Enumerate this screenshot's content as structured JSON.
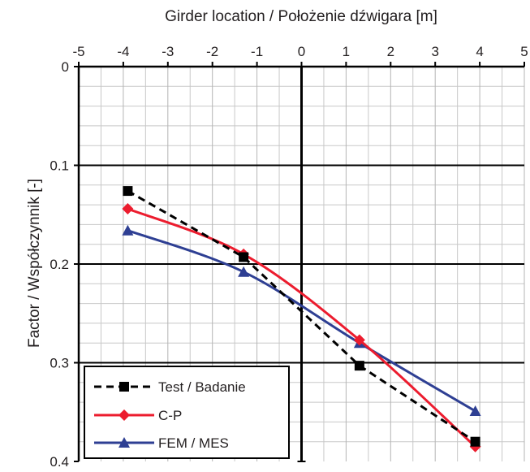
{
  "chart_data": {
    "type": "line",
    "xlabel": "Girder location / Położenie dźwigara [m]",
    "ylabel": "Factor / Współczynnik [-]",
    "xlim": [
      -5,
      5
    ],
    "ylim": [
      0,
      0.4
    ],
    "y_inverted": true,
    "x_axis_position": "top",
    "x_ticks": [
      "-5",
      "-4",
      "-3",
      "-2",
      "-1",
      "0",
      "1",
      "2",
      "3",
      "4",
      "5"
    ],
    "y_ticks": [
      "0",
      "0.1",
      "0.2",
      "0.3",
      "0.4"
    ],
    "grid": true,
    "legend_position": "bottom-left",
    "series": [
      {
        "name": "Test / Badanie",
        "x": [
          -3.9,
          -1.3,
          1.3,
          3.9
        ],
        "y": [
          0.126,
          0.193,
          0.303,
          0.38
        ],
        "color": "#000000",
        "style": "dashed",
        "marker": "square"
      },
      {
        "name": "C-P",
        "x": [
          -3.9,
          -1.3,
          1.3,
          3.9
        ],
        "y": [
          0.144,
          0.19,
          0.277,
          0.385
        ],
        "color": "#ec1c2e",
        "style": "solid",
        "marker": "diamond"
      },
      {
        "name": "FEM / MES",
        "x": [
          -3.9,
          -1.3,
          1.3,
          3.9
        ],
        "y": [
          0.166,
          0.208,
          0.28,
          0.349
        ],
        "color": "#2e3f93",
        "style": "solid",
        "marker": "triangle"
      }
    ]
  }
}
